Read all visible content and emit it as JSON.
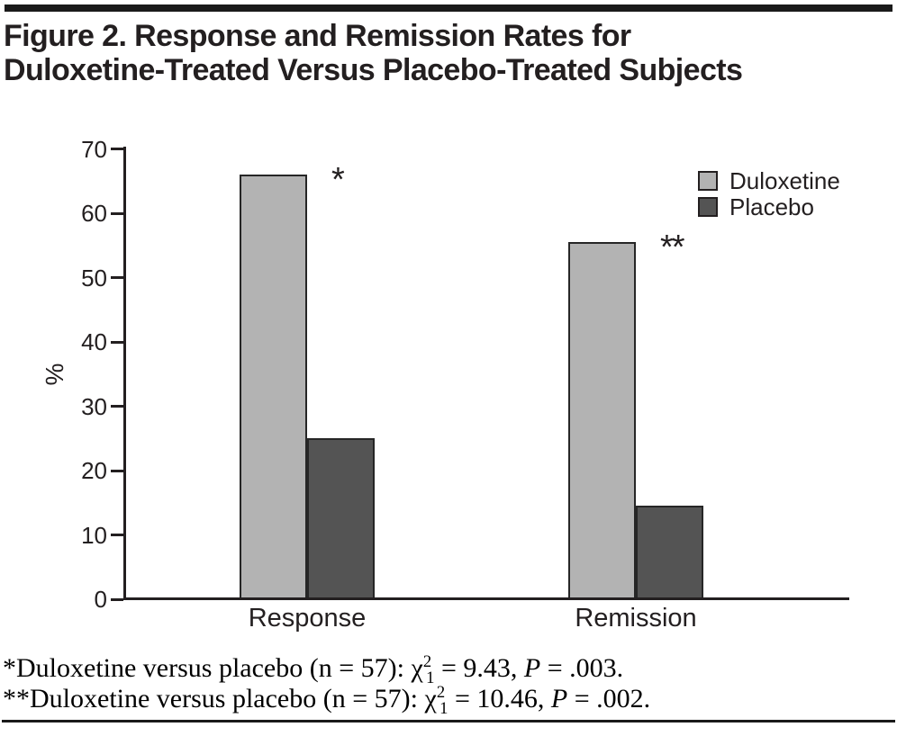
{
  "figure": {
    "title_line1": "Figure 2. Response and Remission Rates for",
    "title_line2": "Duloxetine-Treated Versus Placebo-Treated Subjects"
  },
  "colors": {
    "duloxetine": "#b3b3b3",
    "placebo": "#545454",
    "bar_border": "#262626",
    "axis": "#231f20",
    "text": "#231f20",
    "rule": "#1a1a1a"
  },
  "chart_data": {
    "type": "bar",
    "categories": [
      "Response",
      "Remission"
    ],
    "series": [
      {
        "name": "Duloxetine",
        "color_key": "duloxetine",
        "values": [
          66,
          55.5
        ]
      },
      {
        "name": "Placebo",
        "color_key": "placebo",
        "values": [
          25,
          14.5
        ]
      }
    ],
    "annotations": [
      {
        "category_index": 0,
        "text": "*"
      },
      {
        "category_index": 1,
        "text": "**"
      }
    ],
    "title": "",
    "xlabel": "",
    "ylabel": "%",
    "ylim": [
      0,
      70
    ],
    "ytick_step": 10,
    "grid": false,
    "legend_position": "top-right"
  },
  "footnotes": [
    {
      "star": "*",
      "body": "Duloxetine versus placebo (n = 57): ",
      "chi": "χ",
      "sup": "2",
      "sub": "1",
      "mid": " = 9.43, ",
      "p": "P",
      "end": " = .003."
    },
    {
      "star": "**",
      "body": "Duloxetine versus placebo (n = 57): ",
      "chi": "χ",
      "sup": "2",
      "sub": "1",
      "mid": " = 10.46, ",
      "p": "P",
      "end": " = .002."
    }
  ]
}
